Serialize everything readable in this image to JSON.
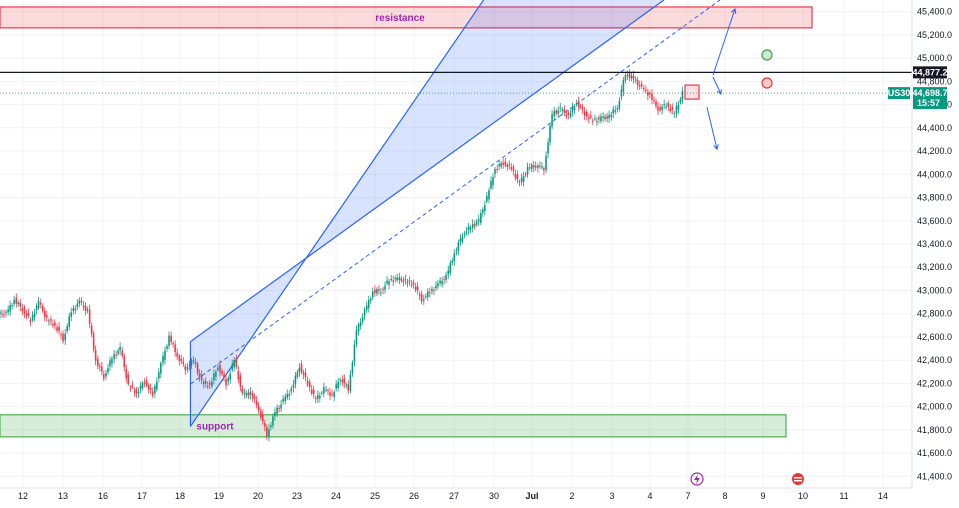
{
  "chart_data": {
    "type": "candlestick",
    "symbol": "US30",
    "y_axis": {
      "min": 41300,
      "max": 45500,
      "ticks": [
        41400,
        41600,
        41800,
        42000,
        42200,
        42400,
        42600,
        42800,
        43000,
        43200,
        43400,
        43600,
        43800,
        44000,
        44200,
        44400,
        44600,
        44800,
        45000,
        45200,
        45400
      ],
      "tick_labels": [
        "41,400.0",
        "41,600.0",
        "41,800.0",
        "42,000.0",
        "42,200.0",
        "42,400.0",
        "42,600.0",
        "42,800.0",
        "43,000.0",
        "43,200.0",
        "43,400.0",
        "43,600.0",
        "43,800.0",
        "44,000.0",
        "44,200.0",
        "44,400.0",
        "44,600.0",
        "44,800.0",
        "45,000.0",
        "45,200.0",
        "45,400.0"
      ]
    },
    "x_axis": {
      "tick_labels": [
        "12",
        "13",
        "16",
        "17",
        "18",
        "19",
        "20",
        "23",
        "24",
        "25",
        "26",
        "27",
        "30",
        "Jul",
        "2",
        "3",
        "4",
        "7",
        "8",
        "9",
        "10",
        "11",
        "14"
      ],
      "bold_labels": [
        "Jul"
      ]
    },
    "zones": [
      {
        "name": "resistance",
        "label": "resistance",
        "low": 45260,
        "high": 45440,
        "color": "#f23645"
      },
      {
        "name": "support",
        "label": "support",
        "low": 41740,
        "high": 41930,
        "color": "#4caf50"
      }
    ],
    "horizontal_line": {
      "price": 44877.2,
      "label": "44,877.2"
    },
    "current_price": {
      "price": 44698.7,
      "label": "44,698.7",
      "countdown": "15:57",
      "symbol": "US30"
    },
    "price_path": [
      [
        0,
        42800
      ],
      [
        1,
        42920
      ],
      [
        2,
        42840
      ],
      [
        3,
        42740
      ],
      [
        4,
        42900
      ],
      [
        5,
        42750
      ],
      [
        6,
        42700
      ],
      [
        7,
        42580
      ],
      [
        8,
        42820
      ],
      [
        9,
        42900
      ],
      [
        10,
        42820
      ],
      [
        11,
        42400
      ],
      [
        12,
        42260
      ],
      [
        13,
        42420
      ],
      [
        14,
        42500
      ],
      [
        15,
        42180
      ],
      [
        16,
        42120
      ],
      [
        17,
        42220
      ],
      [
        18,
        42100
      ],
      [
        19,
        42360
      ],
      [
        20,
        42600
      ],
      [
        21,
        42440
      ],
      [
        22,
        42330
      ],
      [
        23,
        42400
      ],
      [
        24,
        42210
      ],
      [
        25,
        42180
      ],
      [
        26,
        42350
      ],
      [
        27,
        42200
      ],
      [
        28,
        42400
      ],
      [
        29,
        42100
      ],
      [
        30,
        42120
      ],
      [
        31,
        41980
      ],
      [
        32,
        41760
      ],
      [
        33,
        41950
      ],
      [
        34,
        42050
      ],
      [
        35,
        42150
      ],
      [
        36,
        42350
      ],
      [
        37,
        42200
      ],
      [
        38,
        42060
      ],
      [
        39,
        42150
      ],
      [
        40,
        42100
      ],
      [
        41,
        42250
      ],
      [
        42,
        42150
      ],
      [
        43,
        42650
      ],
      [
        44,
        42820
      ],
      [
        45,
        42990
      ],
      [
        46,
        43000
      ],
      [
        47,
        43090
      ],
      [
        48,
        43100
      ],
      [
        49,
        43080
      ],
      [
        50,
        43050
      ],
      [
        51,
        42920
      ],
      [
        52,
        42990
      ],
      [
        53,
        43050
      ],
      [
        54,
        43120
      ],
      [
        55,
        43320
      ],
      [
        56,
        43480
      ],
      [
        57,
        43550
      ],
      [
        58,
        43600
      ],
      [
        59,
        43800
      ],
      [
        60,
        44050
      ],
      [
        61,
        44100
      ],
      [
        62,
        44050
      ],
      [
        63,
        43920
      ],
      [
        64,
        44050
      ],
      [
        65,
        44080
      ],
      [
        66,
        44050
      ],
      [
        67,
        44520
      ],
      [
        68,
        44560
      ],
      [
        69,
        44500
      ],
      [
        70,
        44620
      ],
      [
        71,
        44520
      ],
      [
        72,
        44460
      ],
      [
        73,
        44480
      ],
      [
        74,
        44500
      ],
      [
        75,
        44580
      ],
      [
        76,
        44870
      ],
      [
        77,
        44820
      ],
      [
        78,
        44740
      ],
      [
        79,
        44680
      ],
      [
        80,
        44560
      ],
      [
        81,
        44600
      ],
      [
        82,
        44520
      ],
      [
        83,
        44698.7
      ]
    ],
    "channel": {
      "lower": [
        [
          23.0,
          41830
        ],
        [
          26.5,
          42200
        ],
        [
          33.5,
          42950
        ],
        [
          42.0,
          43800
        ],
        [
          51.0,
          44650
        ],
        [
          52.5,
          44840
        ]
      ],
      "upper": [
        [
          23.0,
          42560
        ],
        [
          28.0,
          42990
        ],
        [
          36.0,
          43820
        ],
        [
          44.0,
          44620
        ],
        [
          50.0,
          45170
        ],
        [
          52.5,
          45180
        ]
      ]
    },
    "markers": [
      {
        "name": "green-circle",
        "color": "#43a047"
      },
      {
        "name": "red-circle",
        "color": "#e53935"
      }
    ]
  }
}
